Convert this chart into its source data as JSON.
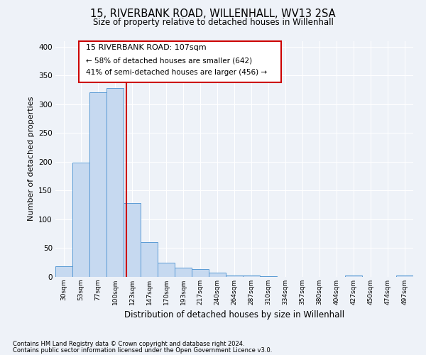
{
  "title": "15, RIVERBANK ROAD, WILLENHALL, WV13 2SA",
  "subtitle": "Size of property relative to detached houses in Willenhall",
  "xlabel": "Distribution of detached houses by size in Willenhall",
  "ylabel": "Number of detached properties",
  "bin_labels": [
    "30sqm",
    "53sqm",
    "77sqm",
    "100sqm",
    "123sqm",
    "147sqm",
    "170sqm",
    "193sqm",
    "217sqm",
    "240sqm",
    "264sqm",
    "287sqm",
    "310sqm",
    "334sqm",
    "357sqm",
    "380sqm",
    "404sqm",
    "427sqm",
    "450sqm",
    "474sqm",
    "497sqm"
  ],
  "bar_values": [
    18,
    198,
    320,
    328,
    128,
    61,
    25,
    16,
    13,
    7,
    3,
    2,
    1,
    0,
    0,
    0,
    0,
    2,
    0,
    0,
    2
  ],
  "bar_color": "#c6d9f0",
  "bar_edge_color": "#5b9bd5",
  "vline_color": "#cc0000",
  "ylim": [
    0,
    410
  ],
  "yticks": [
    0,
    50,
    100,
    150,
    200,
    250,
    300,
    350,
    400
  ],
  "annotation_title": "15 RIVERBANK ROAD: 107sqm",
  "annotation_line1": "← 58% of detached houses are smaller (642)",
  "annotation_line2": "41% of semi-detached houses are larger (456) →",
  "annotation_box_color": "#cc0000",
  "footnote1": "Contains HM Land Registry data © Crown copyright and database right 2024.",
  "footnote2": "Contains public sector information licensed under the Open Government Licence v3.0.",
  "bg_color": "#eef2f8",
  "plot_bg_color": "#eef2f8"
}
